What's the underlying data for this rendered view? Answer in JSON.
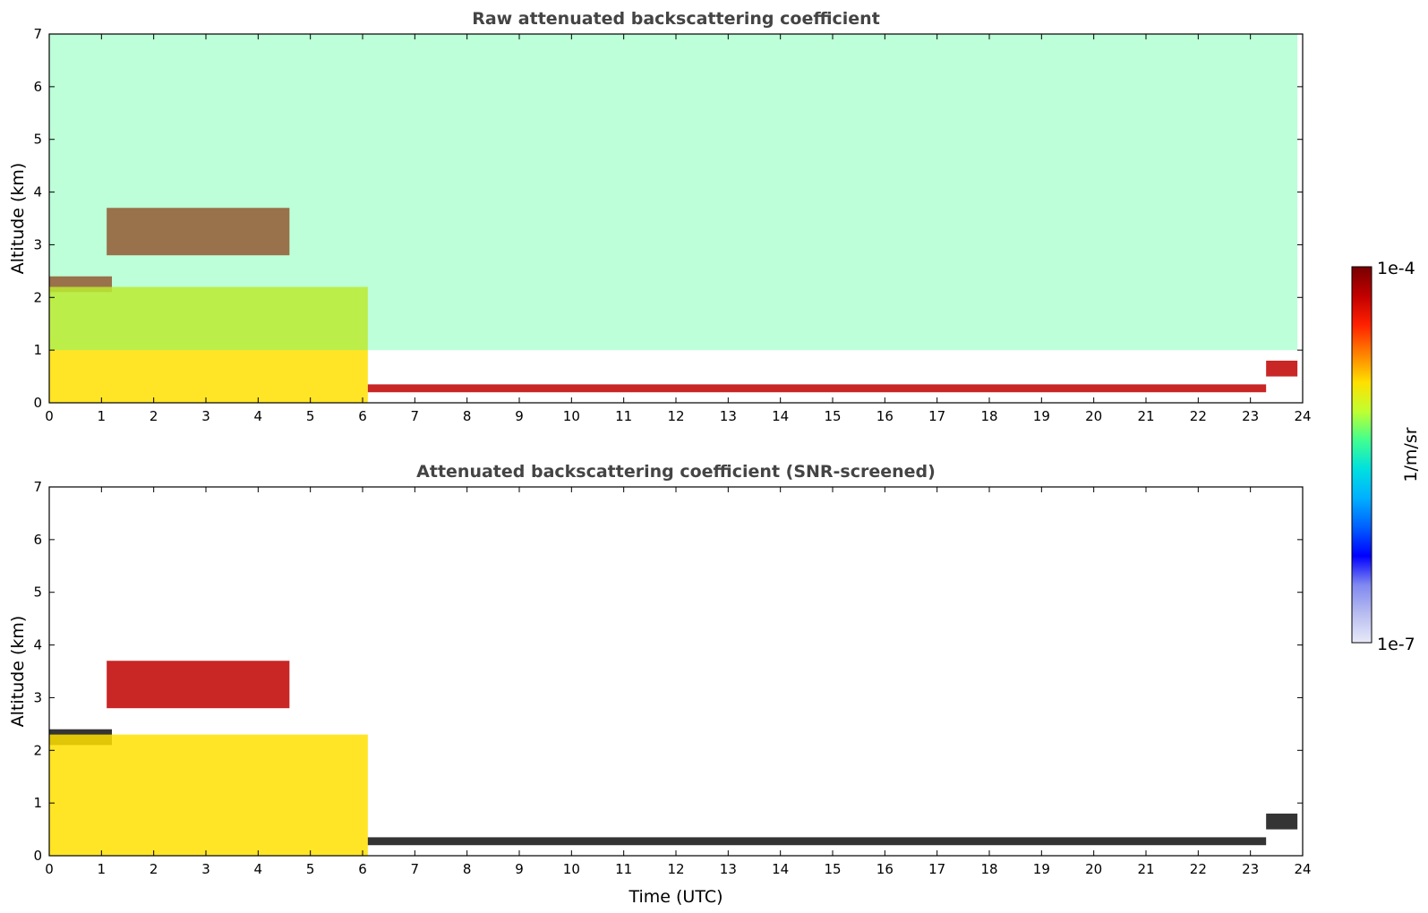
{
  "chart_data": [
    {
      "type": "heatmap",
      "title": "Raw attenuated backscattering coefficient",
      "xlabel": "",
      "ylabel": "Altitude (km)",
      "xlim": [
        0,
        24
      ],
      "ylim": [
        0,
        7
      ],
      "x_ticks": [
        "0",
        "1",
        "2",
        "3",
        "4",
        "5",
        "6",
        "7",
        "8",
        "9",
        "10",
        "11",
        "12",
        "13",
        "14",
        "15",
        "16",
        "17",
        "18",
        "19",
        "20",
        "21",
        "22",
        "23",
        "24"
      ],
      "y_ticks": [
        "0",
        "1",
        "2",
        "3",
        "4",
        "5",
        "6",
        "7"
      ],
      "grid": false,
      "features": [
        {
          "feature": "cloud-layer",
          "x": [
            0,
            1.2
          ],
          "altitude_km": [
            2.1,
            2.4
          ],
          "level": "high"
        },
        {
          "feature": "cloud-layer",
          "x": [
            1.1,
            4.6
          ],
          "altitude_km": [
            2.8,
            3.7
          ],
          "level": "high"
        },
        {
          "feature": "aerosol-boundary-layer",
          "x": [
            0,
            6.1
          ],
          "altitude_km": [
            0,
            2.2
          ],
          "level": "medium"
        },
        {
          "feature": "low-cloud-layer",
          "x": [
            6.1,
            23.3
          ],
          "altitude_km": [
            0.2,
            0.35
          ],
          "level": "high"
        },
        {
          "feature": "low-cloud-layer",
          "x": [
            23.3,
            23.9
          ],
          "altitude_km": [
            0.5,
            0.8
          ],
          "level": "high"
        },
        {
          "feature": "noise",
          "x": [
            0,
            23.9
          ],
          "altitude_km": [
            1,
            7
          ],
          "level": "low"
        }
      ]
    },
    {
      "type": "heatmap",
      "title": "Attenuated backscattering coefficient (SNR-screened)",
      "xlabel": "Time (UTC)",
      "ylabel": "Altitude (km)",
      "xlim": [
        0,
        24
      ],
      "ylim": [
        0,
        7
      ],
      "x_ticks": [
        "0",
        "1",
        "2",
        "3",
        "4",
        "5",
        "6",
        "7",
        "8",
        "9",
        "10",
        "11",
        "12",
        "13",
        "14",
        "15",
        "16",
        "17",
        "18",
        "19",
        "20",
        "21",
        "22",
        "23",
        "24"
      ],
      "y_ticks": [
        "0",
        "1",
        "2",
        "3",
        "4",
        "5",
        "6",
        "7"
      ],
      "grid": false,
      "features": [
        {
          "feature": "cloud-layer",
          "x": [
            0,
            1.2
          ],
          "altitude_km": [
            2.1,
            2.4
          ],
          "level": "saturated"
        },
        {
          "feature": "cloud-layer",
          "x": [
            1.1,
            4.6
          ],
          "altitude_km": [
            2.8,
            3.7
          ],
          "level": "high"
        },
        {
          "feature": "aerosol-boundary-layer",
          "x": [
            0,
            6.1
          ],
          "altitude_km": [
            0,
            2.3
          ],
          "level": "medium"
        },
        {
          "feature": "low-cloud-layer",
          "x": [
            6.1,
            23.3
          ],
          "altitude_km": [
            0.2,
            0.35
          ],
          "level": "saturated"
        },
        {
          "feature": "low-cloud-layer",
          "x": [
            23.3,
            23.9
          ],
          "altitude_km": [
            0.5,
            0.8
          ],
          "level": "saturated"
        }
      ]
    }
  ],
  "colorbar": {
    "label": "1/m/sr",
    "min_label": "1e-7",
    "max_label": "1e-4",
    "min": 1e-07,
    "max": 0.0001,
    "scale": "log",
    "colormap": "jet",
    "colors": [
      "#e8eaf8",
      "#b8bdf0",
      "#8088f0",
      "#0000ff",
      "#0060ff",
      "#00b0ff",
      "#00e0e0",
      "#40ff90",
      "#c0ff30",
      "#ffe000",
      "#ff8000",
      "#ff2000",
      "#c00000",
      "#780000"
    ]
  }
}
